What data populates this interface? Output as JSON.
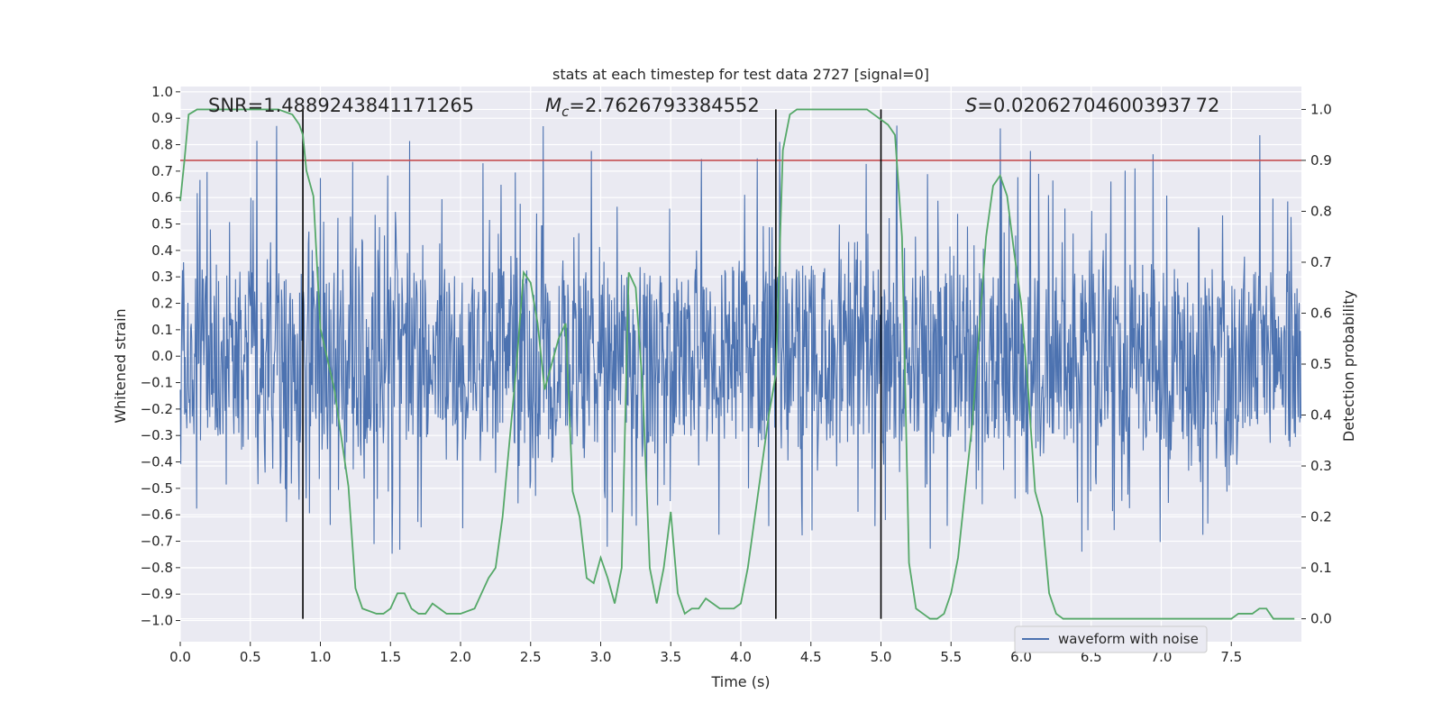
{
  "chart_data": {
    "type": "line",
    "title": "stats at each timestep for test data 2727 [signal=0]",
    "xlabel": "Time (s)",
    "ylabel": "Whitened strain",
    "y2label": "Detection probability",
    "xlim": [
      0,
      8
    ],
    "ylim": [
      -1.08,
      1.02
    ],
    "y2lim": [
      -0.045,
      1.045
    ],
    "xticks": [
      0.0,
      0.5,
      1.0,
      1.5,
      2.0,
      2.5,
      3.0,
      3.5,
      4.0,
      4.5,
      5.0,
      5.5,
      6.0,
      6.5,
      7.0,
      7.5
    ],
    "xtick_labels": [
      "0.0",
      "0.5",
      "1.0",
      "1.5",
      "2.0",
      "2.5",
      "3.0",
      "3.5",
      "4.0",
      "4.5",
      "5.0",
      "5.5",
      "6.0",
      "6.5",
      "7.0",
      "7.5"
    ],
    "yticks": [
      -1.0,
      -0.9,
      -0.8,
      -0.7,
      -0.6,
      -0.5,
      -0.4,
      -0.3,
      -0.2,
      -0.1,
      0.0,
      0.1,
      0.2,
      0.3,
      0.4,
      0.5,
      0.6,
      0.7,
      0.8,
      0.9,
      1.0
    ],
    "ytick_labels": [
      "−1.0",
      "−0.9",
      "−0.8",
      "−0.7",
      "−0.6",
      "−0.5",
      "−0.4",
      "−0.3",
      "−0.2",
      "−0.1",
      "0.0",
      "0.1",
      "0.2",
      "0.3",
      "0.4",
      "0.5",
      "0.6",
      "0.7",
      "0.8",
      "0.9",
      "1.0"
    ],
    "y2ticks": [
      0.0,
      0.1,
      0.2,
      0.3,
      0.4,
      0.5,
      0.6,
      0.7,
      0.8,
      0.9,
      1.0
    ],
    "y2tick_labels": [
      "0.0",
      "0.1",
      "0.2",
      "0.3",
      "0.4",
      "0.5",
      "0.6",
      "0.7",
      "0.8",
      "0.9",
      "1.0"
    ],
    "annotations": {
      "snr": "SNR=1.4889243841171265",
      "mc_symbol": "M",
      "mc_sub": "c",
      "mc_value": "=2.7626793384552",
      "s_symbol": "S",
      "s_value": "=0.020627046003937 72"
    },
    "threshold": {
      "value": 0.9,
      "axis": "y2",
      "color": "#c44e52"
    },
    "vlines": [
      0.875,
      4.25,
      5.0
    ],
    "waveform": {
      "name": "waveform with noise",
      "color": "#4c72b0",
      "n_samples": 2048,
      "core_amplitude": 0.33,
      "tail_low": -0.82,
      "tail_high": 0.93
    },
    "probability": {
      "color": "#55a868",
      "x": [
        0.0,
        0.03,
        0.06,
        0.12,
        0.2,
        0.3,
        0.4,
        0.5,
        0.6,
        0.7,
        0.8,
        0.85,
        0.875,
        0.9,
        0.95,
        1.0,
        1.1,
        1.2,
        1.25,
        1.3,
        1.4,
        1.45,
        1.5,
        1.55,
        1.6,
        1.65,
        1.7,
        1.75,
        1.8,
        1.85,
        1.9,
        1.95,
        2.0,
        2.1,
        2.15,
        2.2,
        2.25,
        2.3,
        2.35,
        2.4,
        2.45,
        2.5,
        2.55,
        2.6,
        2.65,
        2.7,
        2.75,
        2.8,
        2.85,
        2.9,
        2.95,
        3.0,
        3.05,
        3.1,
        3.15,
        3.2,
        3.25,
        3.3,
        3.35,
        3.4,
        3.45,
        3.5,
        3.55,
        3.6,
        3.65,
        3.7,
        3.75,
        3.8,
        3.85,
        3.9,
        3.95,
        4.0,
        4.05,
        4.1,
        4.15,
        4.2,
        4.25,
        4.3,
        4.35,
        4.4,
        4.45,
        4.5,
        4.6,
        4.7,
        4.8,
        4.9,
        4.95,
        5.0,
        5.05,
        5.1,
        5.15,
        5.2,
        5.25,
        5.3,
        5.35,
        5.4,
        5.45,
        5.5,
        5.55,
        5.6,
        5.65,
        5.7,
        5.75,
        5.8,
        5.85,
        5.9,
        5.95,
        6.0,
        6.05,
        6.1,
        6.15,
        6.2,
        6.25,
        6.3,
        6.5,
        6.7,
        6.9,
        7.0,
        7.2,
        7.4,
        7.5,
        7.55,
        7.6,
        7.65,
        7.7,
        7.75,
        7.8,
        7.9,
        7.95
      ],
      "y": [
        0.82,
        0.9,
        0.99,
        1.0,
        1.0,
        1.0,
        1.0,
        1.0,
        1.0,
        1.0,
        0.99,
        0.97,
        0.95,
        0.88,
        0.83,
        0.57,
        0.45,
        0.26,
        0.06,
        0.02,
        0.01,
        0.01,
        0.02,
        0.05,
        0.05,
        0.02,
        0.01,
        0.01,
        0.03,
        0.02,
        0.01,
        0.01,
        0.01,
        0.02,
        0.05,
        0.08,
        0.1,
        0.2,
        0.35,
        0.5,
        0.68,
        0.66,
        0.58,
        0.45,
        0.5,
        0.55,
        0.58,
        0.25,
        0.2,
        0.08,
        0.07,
        0.12,
        0.08,
        0.03,
        0.1,
        0.68,
        0.65,
        0.45,
        0.1,
        0.03,
        0.1,
        0.21,
        0.05,
        0.01,
        0.02,
        0.02,
        0.04,
        0.03,
        0.02,
        0.02,
        0.02,
        0.03,
        0.1,
        0.2,
        0.3,
        0.4,
        0.48,
        0.92,
        0.99,
        1.0,
        1.0,
        1.0,
        1.0,
        1.0,
        1.0,
        1.0,
        0.99,
        0.98,
        0.97,
        0.95,
        0.75,
        0.11,
        0.02,
        0.01,
        0.0,
        0.0,
        0.01,
        0.05,
        0.12,
        0.25,
        0.38,
        0.56,
        0.75,
        0.85,
        0.87,
        0.83,
        0.72,
        0.62,
        0.45,
        0.25,
        0.2,
        0.05,
        0.01,
        0.0,
        0.0,
        0.0,
        0.0,
        0.0,
        0.0,
        0.0,
        0.0,
        0.01,
        0.01,
        0.01,
        0.02,
        0.02,
        0.0,
        0.0,
        0.0
      ]
    },
    "legend": {
      "label": "waveform with noise",
      "location": "lower-right"
    }
  }
}
